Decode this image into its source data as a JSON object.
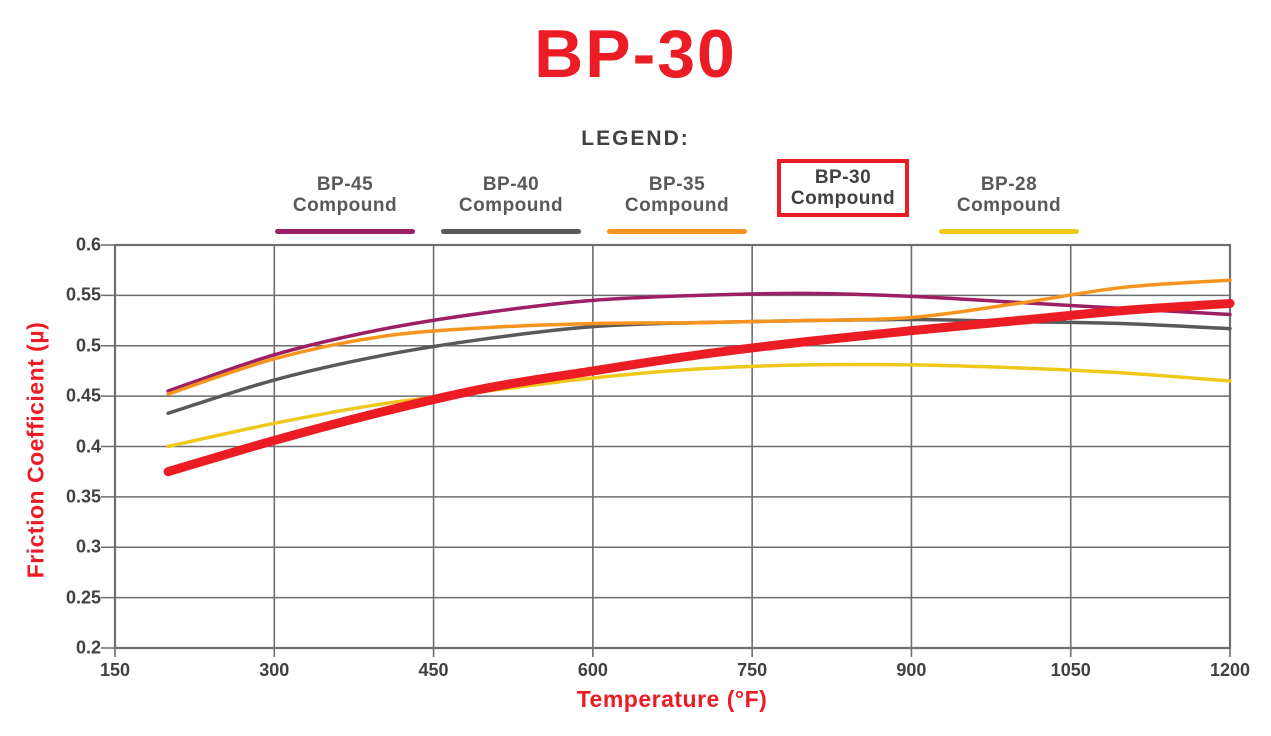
{
  "title": "BP-30",
  "colors": {
    "accent_red": "#EC1C24",
    "text_dark": "#414042",
    "text_gray": "#58595B",
    "grid_gray": "#6D6E71"
  },
  "legend": {
    "heading": "LEGEND:",
    "items": [
      {
        "name": "BP-45",
        "sub": "Compound",
        "color": "#9C2063",
        "featured": false
      },
      {
        "name": "BP-40",
        "sub": "Compound",
        "color": "#58595B",
        "featured": false
      },
      {
        "name": "BP-35",
        "sub": "Compound",
        "color": "#F7941E",
        "featured": false
      },
      {
        "name": "BP-30",
        "sub": "Compound",
        "color": "#EC1C24",
        "featured": true
      },
      {
        "name": "BP-28",
        "sub": "Compound",
        "color": "#EFC81C",
        "featured": false
      }
    ]
  },
  "chart_data": {
    "type": "line",
    "title": "BP-30",
    "xlabel": "Temperature (°F)",
    "ylabel": "Friction Coefficient (µ)",
    "xlim": [
      150,
      1200
    ],
    "ylim": [
      0.2,
      0.6
    ],
    "x_tick_values": [
      150,
      300,
      450,
      600,
      750,
      900,
      1050,
      1200
    ],
    "x_tick_labels": [
      "150",
      "300",
      "450",
      "600",
      "750",
      "900",
      "1050",
      "1200"
    ],
    "y_tick_values": [
      0.2,
      0.25,
      0.3,
      0.35,
      0.4,
      0.45,
      0.5,
      0.55,
      0.6
    ],
    "y_tick_labels": [
      "0.2",
      "0.25",
      "0.3",
      "0.35",
      "0.4",
      "0.45",
      "0.5",
      "0.55",
      "0.6"
    ],
    "grid": true,
    "legend_position": "top",
    "x": [
      200,
      300,
      400,
      500,
      600,
      700,
      800,
      900,
      1000,
      1100,
      1200
    ],
    "series": [
      {
        "name": "BP-45 Compound",
        "color": "#9C2063",
        "width": 3.5,
        "values": [
          0.455,
          0.491,
          0.516,
          0.533,
          0.545,
          0.55,
          0.552,
          0.549,
          0.543,
          0.537,
          0.531
        ]
      },
      {
        "name": "BP-40 Compound",
        "color": "#58595B",
        "width": 3.5,
        "values": [
          0.433,
          0.466,
          0.49,
          0.507,
          0.519,
          0.523,
          0.525,
          0.526,
          0.524,
          0.522,
          0.517
        ]
      },
      {
        "name": "BP-28 Compound",
        "color": "#EFC81C",
        "width": 3.5,
        "values": [
          0.4,
          0.423,
          0.442,
          0.455,
          0.468,
          0.477,
          0.481,
          0.481,
          0.478,
          0.473,
          0.465
        ]
      },
      {
        "name": "BP-35 Compound",
        "color": "#F7941E",
        "width": 3.5,
        "values": [
          0.452,
          0.487,
          0.509,
          0.518,
          0.522,
          0.523,
          0.525,
          0.528,
          0.542,
          0.558,
          0.565
        ]
      },
      {
        "name": "BP-30 Compound",
        "color": "#EC1C24",
        "width": 9,
        "values": [
          0.375,
          0.406,
          0.434,
          0.458,
          0.475,
          0.491,
          0.504,
          0.515,
          0.525,
          0.535,
          0.542
        ]
      }
    ]
  }
}
